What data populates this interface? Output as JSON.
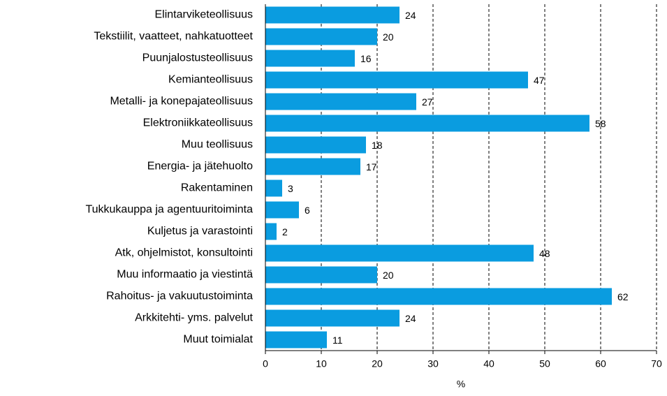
{
  "chart_data": {
    "type": "bar",
    "orientation": "horizontal",
    "categories": [
      "Elintarviketeollisuus",
      "Tekstiilit, vaatteet, nahkatuotteet",
      "Puunjalostusteollisuus",
      "Kemianteollisuus",
      "Metalli- ja konepajateollisuus",
      "Elektroniikkateollisuus",
      "Muu teollisuus",
      "Energia- ja jätehuolto",
      "Rakentaminen",
      "Tukkukauppa ja agentuuritoiminta",
      "Kuljetus ja varastointi",
      "Atk, ohjelmistot, konsultointi",
      "Muu informaatio ja viestintä",
      "Rahoitus- ja vakuutustoiminta",
      "Arkkitehti- yms. palvelut",
      "Muut toimialat"
    ],
    "values": [
      24,
      20,
      16,
      47,
      27,
      58,
      18,
      17,
      3,
      6,
      2,
      48,
      20,
      62,
      24,
      11
    ],
    "color": "#0a9ce0",
    "xlabel": "%",
    "xlim": [
      0,
      70
    ],
    "xticks": [
      0,
      10,
      20,
      30,
      40,
      50,
      60,
      70
    ],
    "grid": true
  }
}
